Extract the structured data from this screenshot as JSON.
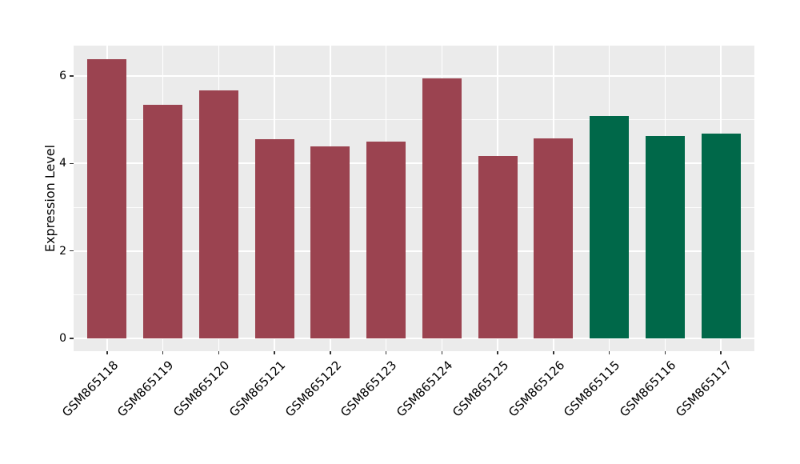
{
  "figure": {
    "background": "#FFFFFF",
    "panel_background": "#EBEBEB",
    "grid_color": "#FFFFFF",
    "tick_color": "#333333",
    "text_color": "#000000"
  },
  "chart_data": {
    "type": "bar",
    "title": "",
    "xlabel": "",
    "ylabel": "Expression Level",
    "categories": [
      "GSM865118",
      "GSM865119",
      "GSM865120",
      "GSM865121",
      "GSM865122",
      "GSM865123",
      "GSM865124",
      "GSM865125",
      "GSM865126",
      "GSM865115",
      "GSM865116",
      "GSM865117"
    ],
    "values": [
      6.38,
      5.34,
      5.67,
      4.56,
      4.39,
      4.51,
      5.94,
      4.18,
      4.58,
      5.09,
      4.63,
      4.69
    ],
    "bar_colors": [
      "#9B4350",
      "#9B4350",
      "#9B4350",
      "#9B4350",
      "#9B4350",
      "#9B4350",
      "#9B4350",
      "#9B4350",
      "#9B4350",
      "#006849",
      "#006849",
      "#006849"
    ],
    "group_colors": {
      "maroon_group": "#9B4350",
      "green_group": "#006849"
    },
    "ylim": [
      0,
      6.7
    ],
    "yticks": [
      0,
      2,
      4,
      6
    ],
    "ytick_labels": [
      "0",
      "2",
      "4",
      "6"
    ],
    "yticks_minor": [
      1,
      3,
      5
    ],
    "grid": true,
    "legend": "none"
  }
}
